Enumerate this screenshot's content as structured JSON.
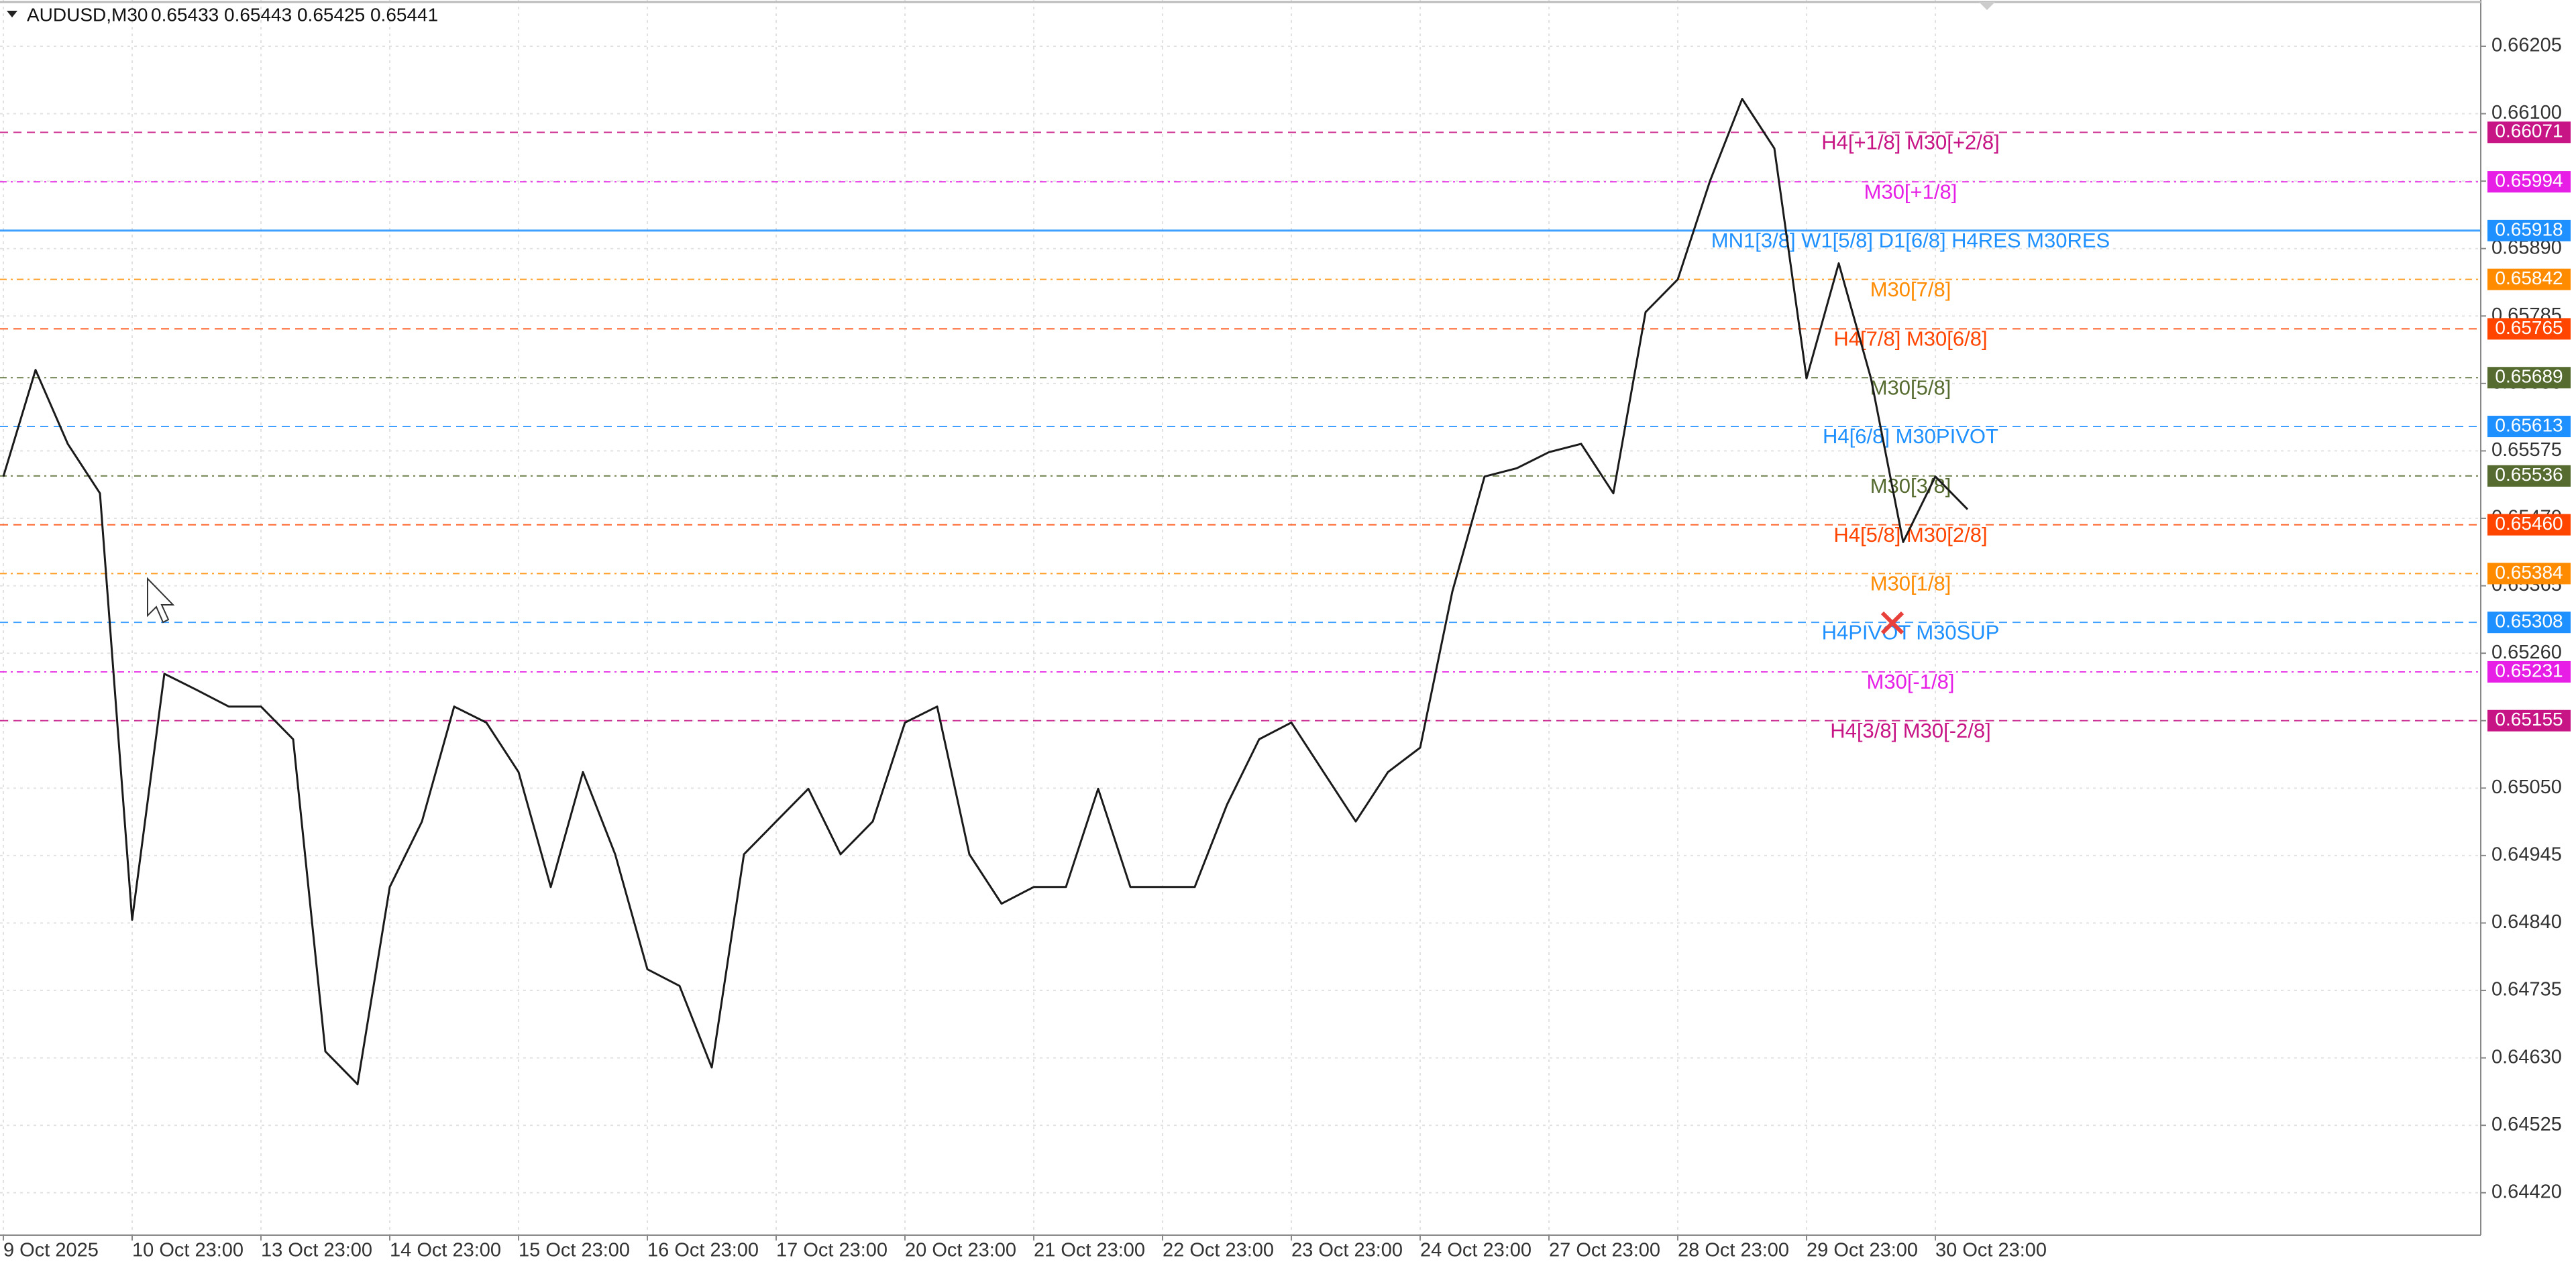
{
  "header": {
    "symbol": "AUDUSD,M30",
    "quote": "0.65433 0.65443 0.65425 0.65441"
  },
  "chart_data": {
    "type": "line",
    "categories": [
      "9 Oct 2025",
      null,
      null,
      null,
      "10 Oct 23:00",
      null,
      null,
      null,
      "13 Oct 23:00",
      null,
      null,
      null,
      "14 Oct 23:00",
      null,
      null,
      null,
      "15 Oct 23:00",
      null,
      null,
      null,
      "16 Oct 23:00",
      null,
      null,
      null,
      "17 Oct 23:00",
      null,
      null,
      null,
      "20 Oct 23:00",
      null,
      null,
      null,
      "21 Oct 23:00",
      null,
      null,
      null,
      "22 Oct 23:00",
      null,
      null,
      null,
      "23 Oct 23:00",
      null,
      null,
      null,
      "24 Oct 23:00",
      null,
      null,
      null,
      "27 Oct 23:00",
      null,
      null,
      null,
      "28 Oct 23:00",
      null,
      null,
      null,
      "29 Oct 23:00",
      null,
      null,
      null,
      "30 Oct 23:00",
      null
    ],
    "series": [
      {
        "name": "AUDUSD",
        "color": "#1a1a1a",
        "values": [
          0.65535,
          0.65701,
          0.65586,
          0.65509,
          0.64845,
          0.65228,
          0.65203,
          0.65177,
          0.65177,
          0.65126,
          0.6464,
          0.64589,
          0.64896,
          0.64998,
          0.65177,
          0.65152,
          0.65075,
          0.64896,
          0.65075,
          0.64947,
          0.64768,
          0.64742,
          0.64615,
          0.64947,
          0.64998,
          0.65049,
          0.64947,
          0.64998,
          0.65152,
          0.65177,
          0.64947,
          0.6487,
          0.64896,
          0.64896,
          0.65049,
          0.64896,
          0.64896,
          0.64896,
          0.65024,
          0.65126,
          0.65152,
          0.65075,
          0.64998,
          0.65075,
          0.65113,
          0.65356,
          0.65535,
          0.65548,
          0.65573,
          0.65586,
          0.65509,
          0.65791,
          0.65842,
          0.65995,
          0.66123,
          0.66046,
          0.65688,
          0.65867,
          0.65688,
          0.65433,
          0.65535,
          0.65484
        ]
      }
    ],
    "ylim": [
      0.64354,
      0.66277
    ],
    "yticks": [
      0.66205,
      {
        "value": 0.661,
        "label": "0.66100"
      },
      0.65995,
      {
        "value": 0.6589,
        "label": "0.65890"
      },
      0.65785,
      {
        "value": 0.6568,
        "label": "0.65680"
      },
      0.65575,
      {
        "value": 0.6547,
        "label": "0.65470"
      },
      0.65365,
      {
        "value": 0.6526,
        "label": "0.65260"
      },
      0.65155,
      {
        "value": 0.6505,
        "label": "0.65050"
      },
      0.64945,
      {
        "value": 0.6484,
        "label": "0.64840"
      },
      0.64735,
      {
        "value": 0.6463,
        "label": "0.64630"
      },
      0.64525,
      {
        "value": 0.6442,
        "label": "0.64420"
      }
    ],
    "grid": true,
    "levels": [
      {
        "value": 0.66071,
        "value_label": "0.66071",
        "label": "H4[+1/8] M30[+2/8]",
        "color": "#c71585"
      },
      {
        "value": 0.65994,
        "value_label": "0.65994",
        "label": "M30[+1/8]",
        "color": "#e61ee6"
      },
      {
        "value": 0.65918,
        "value_label": "0.65918",
        "label": "MN1[3/8] W1[5/8] D1[6/8] H4RES M30RES",
        "color": "#1e90ff"
      },
      {
        "value": 0.65842,
        "value_label": "0.65842",
        "label": "M30[7/8]",
        "color": "#ff8c00"
      },
      {
        "value": 0.65765,
        "value_label": "0.65765",
        "label": "H4[7/8] M30[6/8]",
        "color": "#ff4500"
      },
      {
        "value": 0.65689,
        "value_label": "0.65689",
        "label": "M30[5/8]",
        "color": "#556b2f"
      },
      {
        "value": 0.65613,
        "value_label": "0.65613",
        "label": "H4[6/8] M30PIVOT",
        "color": "#1e90ff"
      },
      {
        "value": 0.65536,
        "value_label": "0.65536",
        "label": "M30[3/8]",
        "color": "#556b2f"
      },
      {
        "value": 0.6546,
        "value_label": "0.65460",
        "label": "H4[5/8] M30[2/8]",
        "color": "#ff4500"
      },
      {
        "value": 0.65384,
        "value_label": "0.65384",
        "label": "M30[1/8]",
        "color": "#ff8c00"
      },
      {
        "value": 0.65308,
        "value_label": "0.65308",
        "label": "H4PIVOT M30SUP",
        "color": "#1e90ff"
      },
      {
        "value": 0.65231,
        "value_label": "0.65231",
        "label": "M30[-1/8]",
        "color": "#e61ee6"
      },
      {
        "value": 0.65155,
        "value_label": "0.65155",
        "label": "H4[3/8] M30[-2/8]",
        "color": "#c71585"
      }
    ]
  }
}
